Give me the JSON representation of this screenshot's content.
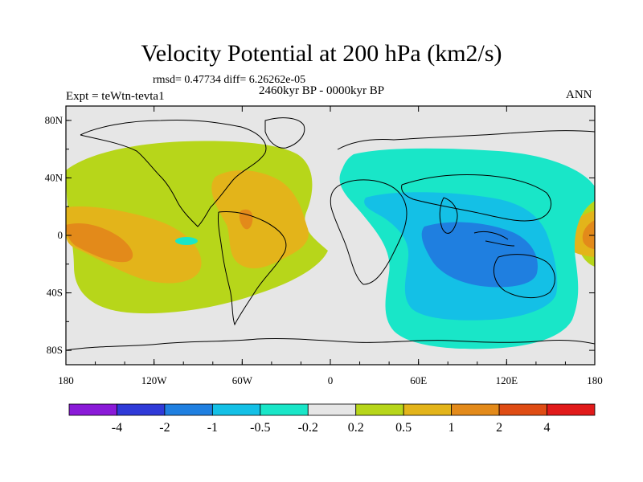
{
  "title": "Velocity Potential at 200 hPa (km2/s)",
  "stats_text": "rmsd= 0.47734 diff= 6.26262e-05",
  "period": "2460kyr BP - 0000kyr BP",
  "experiment": "Expt = teWtn-tevta1",
  "season": "ANN",
  "map": {
    "projection": "cylindrical equidistant",
    "lon_range": [
      -180,
      180
    ],
    "lat_range": [
      -90,
      90
    ],
    "y_axis": {
      "ticks": [
        80,
        40,
        0,
        -40,
        -80
      ],
      "labels": [
        "80N",
        "40N",
        "0",
        "40S",
        "80S"
      ]
    },
    "x_axis": {
      "ticks": [
        -180,
        -120,
        -60,
        0,
        60,
        120,
        180
      ],
      "labels": [
        "180",
        "120W",
        "60W",
        "0",
        "60E",
        "120E",
        "180"
      ]
    },
    "colors": {
      "c_m4": "#8a1ad8",
      "c_m2": "#2f3ad8",
      "c_m1": "#1f7fe0",
      "c_m05": "#14c0e6",
      "c_m02": "#19e6c8",
      "c_0": "#e6e6e6",
      "c_02": "#b7d61a",
      "c_05": "#e3b41a",
      "c_1": "#e38a1a",
      "c_2": "#df4c14",
      "c_4": "#e11a1a"
    }
  },
  "colorbar": {
    "colors": [
      "#8a1ad8",
      "#2f3ad8",
      "#1f7fe0",
      "#14c0e6",
      "#19e6c8",
      "#e6e6e6",
      "#b7d61a",
      "#e3b41a",
      "#e38a1a",
      "#df4c14",
      "#e11a1a"
    ],
    "labels": [
      "-4",
      "-2",
      "-1",
      "-0.5",
      "-0.2",
      "0.2",
      "0.5",
      "1",
      "2",
      "4"
    ]
  }
}
